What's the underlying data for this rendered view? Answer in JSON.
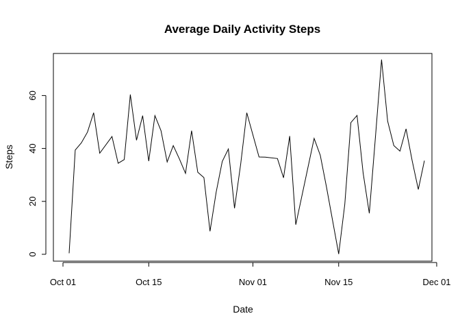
{
  "chart_data": {
    "type": "line",
    "title": "Average Daily Activity Steps",
    "xlabel": "Date",
    "ylabel": "Steps",
    "x_axis_type": "date",
    "xlim": [
      "2012-10-01",
      "2012-11-30"
    ],
    "ylim": [
      0,
      75
    ],
    "x_ticks": [
      {
        "date": "2012-10-01",
        "label": "Oct 01"
      },
      {
        "date": "2012-10-15",
        "label": "Oct 15"
      },
      {
        "date": "2012-11-01",
        "label": "Nov 01"
      },
      {
        "date": "2012-11-15",
        "label": "Nov 15"
      },
      {
        "date": "2012-12-01",
        "label": "Dec 01"
      }
    ],
    "y_ticks": [
      0,
      20,
      40,
      60
    ],
    "grid": false,
    "legend": "none",
    "line_color": "#000000",
    "series": [
      {
        "x": [
          "2012-10-02",
          "2012-10-03",
          "2012-10-04",
          "2012-10-05",
          "2012-10-06",
          "2012-10-07",
          "2012-10-09",
          "2012-10-10",
          "2012-10-11",
          "2012-10-12",
          "2012-10-13",
          "2012-10-14",
          "2012-10-15",
          "2012-10-16",
          "2012-10-17",
          "2012-10-18",
          "2012-10-19",
          "2012-10-20",
          "2012-10-21",
          "2012-10-22",
          "2012-10-23",
          "2012-10-24",
          "2012-10-25",
          "2012-10-26",
          "2012-10-27",
          "2012-10-28",
          "2012-10-29",
          "2012-10-30",
          "2012-10-31",
          "2012-11-02",
          "2012-11-03",
          "2012-11-05",
          "2012-11-06",
          "2012-11-07",
          "2012-11-08",
          "2012-11-11",
          "2012-11-12",
          "2012-11-13",
          "2012-11-15",
          "2012-11-16",
          "2012-11-17",
          "2012-11-18",
          "2012-11-19",
          "2012-11-20",
          "2012-11-21",
          "2012-11-22",
          "2012-11-23",
          "2012-11-24",
          "2012-11-25",
          "2012-11-26",
          "2012-11-27",
          "2012-11-28",
          "2012-11-29"
        ],
        "values": [
          0.4,
          39.4,
          42.1,
          46.2,
          53.5,
          38.2,
          44.5,
          34.4,
          35.8,
          60.4,
          43.1,
          52.4,
          35.2,
          52.4,
          46.7,
          34.9,
          41.1,
          36.1,
          30.6,
          46.7,
          31.0,
          29.0,
          8.7,
          23.5,
          35.1,
          39.8,
          17.4,
          34.1,
          53.5,
          36.8,
          36.7,
          36.2,
          28.9,
          44.7,
          11.2,
          43.8,
          37.4,
          25.5,
          0.1,
          18.9,
          49.8,
          52.5,
          30.7,
          15.5,
          44.4,
          73.6,
          50.3,
          41.1,
          39.0,
          47.4,
          35.4,
          24.5,
          35.4
        ]
      }
    ]
  }
}
